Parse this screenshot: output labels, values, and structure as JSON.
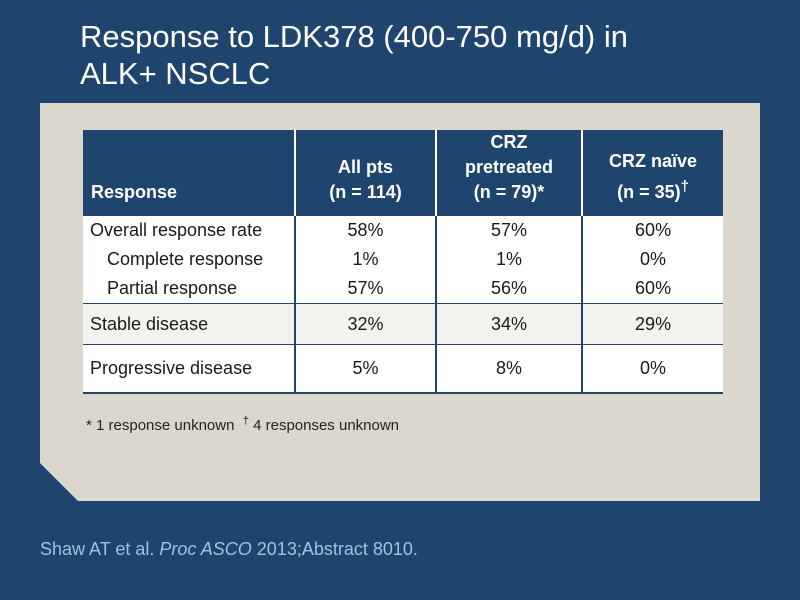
{
  "title": {
    "line1": "Response to LDK378 (400-750 mg/d) in",
    "line2": "ALK+ NSCLC"
  },
  "table": {
    "headers": {
      "response": "Response",
      "all_pts": {
        "line1": "All pts",
        "line2": "(n = 114)"
      },
      "crz_pretreated": {
        "line1": "CRZ",
        "line2": "pretreated",
        "line3": "(n = 79)*"
      },
      "crz_naive": {
        "line1": "CRZ naïve",
        "line2": "(n = 35)",
        "mark": "†"
      }
    },
    "rows": [
      {
        "label": "Overall response rate",
        "all": "58%",
        "pre": "57%",
        "naive": "60%"
      },
      {
        "label": "Complete response",
        "all": "1%",
        "pre": "1%",
        "naive": "0%"
      },
      {
        "label": "Partial response",
        "all": "57%",
        "pre": "56%",
        "naive": "60%"
      },
      {
        "label": "Stable disease",
        "all": "32%",
        "pre": "34%",
        "naive": "29%"
      },
      {
        "label": "Progressive disease",
        "all": "5%",
        "pre": "8%",
        "naive": "0%"
      }
    ]
  },
  "footnotes": {
    "mark1": "*",
    "text1": "1 response unknown",
    "mark2": "†",
    "text2": "4 responses unknown"
  },
  "citation": {
    "authors": "Shaw AT et al.",
    "journal": "Proc ASCO",
    "rest": "2013;Abstract 8010."
  },
  "colors": {
    "background": "#1f456e",
    "panel": "#dcd7cc",
    "citation": "#9ec3e6"
  }
}
